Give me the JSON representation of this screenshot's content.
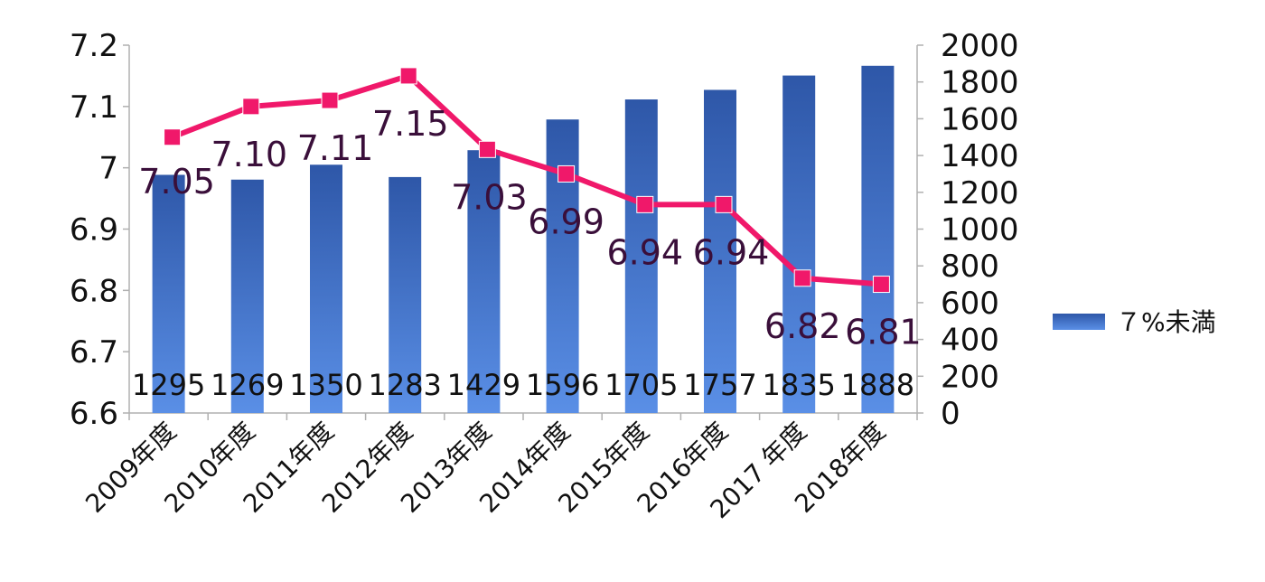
{
  "chart_data": {
    "type": "bar",
    "categories": [
      "2009年度",
      "2010年度",
      "2011年度",
      "2012年度",
      "2013年度",
      "2014年度",
      "2015年度",
      "2016年度",
      "2017 年度",
      "2018年度"
    ],
    "series": [
      {
        "name": "７%未満",
        "type": "bar",
        "axis": "right",
        "values": [
          1295,
          1269,
          1350,
          1283,
          1429,
          1596,
          1705,
          1757,
          1835,
          1888
        ],
        "labels": [
          "1295",
          "1269",
          "1350",
          "1283",
          "1429",
          "1596",
          "1705",
          "1757",
          "1835",
          "1888"
        ],
        "color": "#3f6fc9"
      },
      {
        "type": "line",
        "axis": "left",
        "values": [
          7.05,
          7.1,
          7.11,
          7.15,
          7.03,
          6.99,
          6.94,
          6.94,
          6.82,
          6.81
        ],
        "labels": [
          "7.05",
          "7.10",
          "7.11",
          "7.15",
          "7.03",
          "6.99",
          "6.94",
          "6.94",
          "6.82",
          "6.81"
        ],
        "color": "#f0186a",
        "marker_color": "#f0186a"
      }
    ],
    "y_left": {
      "ylim": [
        6.6,
        7.2
      ],
      "ticks": [
        6.6,
        6.7,
        6.8,
        6.9,
        7.0,
        7.1,
        7.2
      ],
      "tick_labels": [
        "6.6",
        "6.7",
        "6.8",
        "6.9",
        "7",
        "7.1",
        "7.2"
      ]
    },
    "y_right": {
      "ylim": [
        0,
        2000
      ],
      "ticks": [
        0,
        200,
        400,
        600,
        800,
        1000,
        1200,
        1400,
        1600,
        1800,
        2000
      ],
      "tick_labels": [
        "0",
        "200",
        "400",
        "600",
        "800",
        "1000",
        "1200",
        "1400",
        "1600",
        "1800",
        "2000"
      ]
    },
    "title": "",
    "xlabel": "",
    "ylabel": "",
    "grid": false,
    "legend": {
      "position": "right",
      "entries": [
        "７%未満"
      ]
    },
    "colors": {
      "bar_top": "#2e57a8",
      "bar_bottom": "#5a8fe6",
      "line": "#f0186a",
      "axis": "#b0b0b0"
    }
  }
}
